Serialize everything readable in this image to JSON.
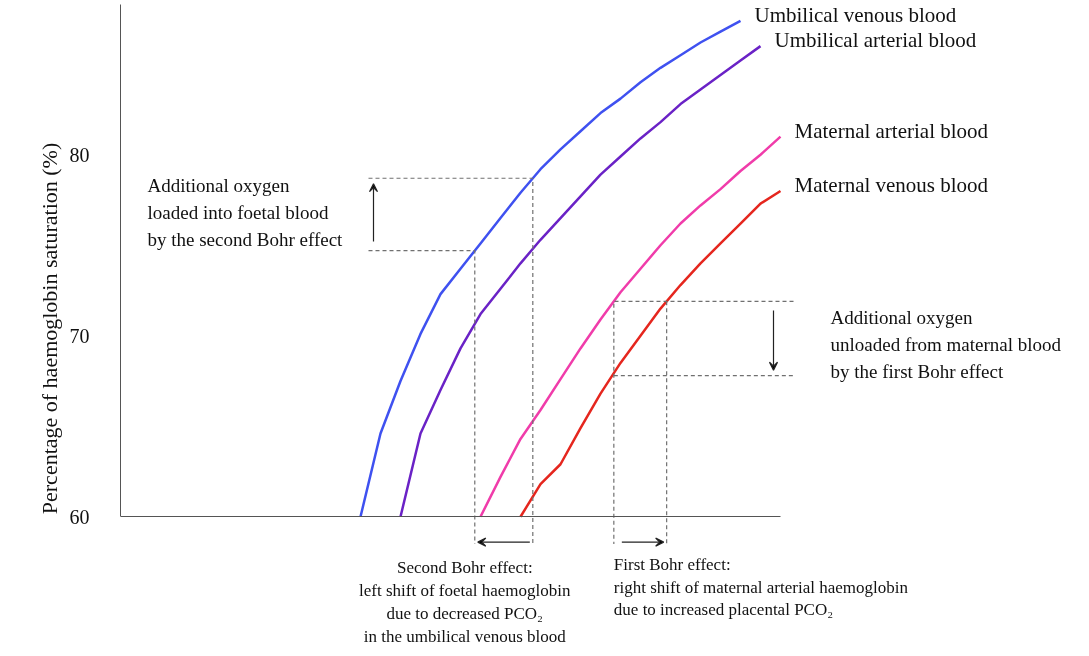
{
  "chart_data": {
    "type": "line",
    "ylabel": "Percentage of haemoglobin saturation (%)",
    "categories": [
      null,
      null,
      null,
      null,
      null,
      null,
      null,
      null,
      null,
      null,
      null,
      null,
      null,
      null,
      null,
      null,
      null,
      null,
      null,
      null,
      null,
      null,
      null,
      null,
      null,
      null,
      null,
      null,
      null,
      null,
      null,
      null,
      null,
      null
    ],
    "ylim": [
      60,
      88.3
    ],
    "yticks": [
      60,
      70,
      80
    ],
    "tick_labels": "y",
    "grid": false,
    "legend": false,
    "marker": "none",
    "line_style": "solid",
    "series": [
      {
        "name": "Umbilical venous blood",
        "color": "#3f51f0",
        "values": [
          null,
          null,
          null,
          null,
          null,
          null,
          null,
          null,
          null,
          null,
          null,
          null,
          60,
          64.6,
          67.5,
          70.1,
          72.3,
          73.7,
          75.1,
          76.5,
          77.9,
          79.2,
          80.3,
          81.3,
          82.3,
          83.1,
          84.0,
          84.8,
          85.5,
          86.2,
          86.8,
          87.4,
          null,
          null
        ]
      },
      {
        "name": "Umbilical arterial blood",
        "color": "#6a22c6",
        "values": [
          null,
          null,
          null,
          null,
          null,
          null,
          null,
          null,
          null,
          null,
          null,
          null,
          null,
          null,
          60,
          64.6,
          67.0,
          69.3,
          71.2,
          72.6,
          74.0,
          75.3,
          76.5,
          77.7,
          78.9,
          79.9,
          80.9,
          81.8,
          82.8,
          83.6,
          84.4,
          85.2,
          86.0,
          null
        ]
      },
      {
        "name": "Maternal arterial blood",
        "color": "#f03caa",
        "values": [
          null,
          null,
          null,
          null,
          null,
          null,
          null,
          null,
          null,
          null,
          null,
          null,
          null,
          null,
          null,
          null,
          null,
          null,
          60,
          62.2,
          64.3,
          65.9,
          67.6,
          69.3,
          70.9,
          72.4,
          73.7,
          75.0,
          76.2,
          77.2,
          78.1,
          79.1,
          80.0,
          81.0
        ]
      },
      {
        "name": "Maternal venous blood",
        "color": "#e5261e",
        "values": [
          null,
          null,
          null,
          null,
          null,
          null,
          null,
          null,
          null,
          null,
          null,
          null,
          null,
          null,
          null,
          null,
          null,
          null,
          null,
          null,
          60,
          61.8,
          62.9,
          64.9,
          66.8,
          68.5,
          70.0,
          71.5,
          72.8,
          74.0,
          75.1,
          76.2,
          77.3,
          78.0
        ]
      }
    ],
    "ref_lines": [
      {
        "axis": "y",
        "value": 78.7,
        "label": "Additional oxygen\nloaded into foetal blood\nby the second Bohr effect",
        "line_style": "dashed",
        "color": "#707070"
      },
      {
        "axis": "y",
        "value": 74.7,
        "line_style": "dashed",
        "color": "#707070"
      },
      {
        "axis": "y",
        "value": 71.9,
        "label": "Additional oxygen\nunloaded from maternal blood\nby the first Bohr effect",
        "line_style": "dashed",
        "color": "#707070"
      },
      {
        "axis": "y",
        "value": 67.8,
        "line_style": "dashed",
        "color": "#707070"
      }
    ],
    "annotations": [
      "Second Bohr effect:\nleft shift of foetal haemoglobin\ndue to decreased PCO₂\nin the umbilical venous blood",
      "First Bohr effect:\nright shift of maternal arterial haemoglobin\ndue to increased placental PCO₂"
    ]
  }
}
